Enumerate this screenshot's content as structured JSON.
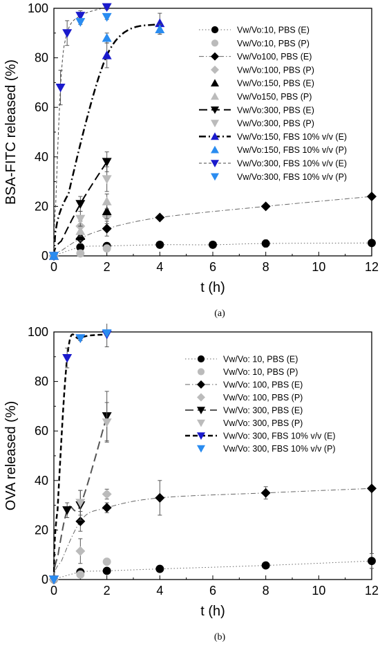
{
  "chart_data": [
    {
      "type": "scatter",
      "id": "a",
      "caption": "(a)",
      "xlabel": "t (h)",
      "ylabel": "BSA-FITC released (%)",
      "xlim": [
        0,
        12
      ],
      "ylim": [
        0,
        100
      ],
      "xticks": [
        0,
        2,
        4,
        6,
        8,
        10,
        12
      ],
      "yticks": [
        0,
        20,
        40,
        60,
        80,
        100
      ],
      "grid": false,
      "legend_position": "top-right",
      "series": [
        {
          "name": "Vw/Vo:10, PBS (E)",
          "marker": "circle",
          "color": "#000000",
          "line": "dot",
          "lineColor": "#666666",
          "x": [
            0,
            1,
            2,
            4,
            6,
            8,
            12
          ],
          "y": [
            0,
            3.5,
            4,
            4.5,
            4.5,
            5,
            5.2
          ],
          "err": [
            0,
            1,
            1,
            0.5,
            0.5,
            1.5,
            1
          ],
          "fit": true
        },
        {
          "name": "Vw/Vo:10, PBS (P)",
          "marker": "circle",
          "color": "#bbbbbb",
          "line": "none",
          "x": [
            0,
            1,
            2
          ],
          "y": [
            0,
            1,
            3
          ],
          "err": [
            0,
            0.5,
            0.8
          ]
        },
        {
          "name": "Vw/Vo100, PBS (E)",
          "marker": "diamond",
          "color": "#000000",
          "line": "dashdot",
          "lineColor": "#666666",
          "x": [
            0,
            1,
            2,
            4,
            8,
            12
          ],
          "y": [
            0,
            7,
            11,
            15.5,
            20,
            24
          ],
          "err": [
            0,
            2,
            3,
            1,
            1,
            1
          ],
          "fit": true
        },
        {
          "name": "Vw/Vo:100, PBS (P)",
          "marker": "diamond",
          "color": "#bbbbbb",
          "line": "none",
          "x": [
            0,
            1,
            2
          ],
          "y": [
            0,
            12,
            16
          ],
          "err": [
            0,
            2,
            3
          ]
        },
        {
          "name": "Vw/Vo:150, PBS (E)",
          "marker": "triangle-up",
          "color": "#000000",
          "line": "none",
          "x": [
            0,
            1,
            2
          ],
          "y": [
            0,
            8,
            18
          ],
          "err": [
            0,
            2,
            3
          ]
        },
        {
          "name": "Vw/Vo150, PBS (P)",
          "marker": "triangle-up",
          "color": "#bbbbbb",
          "line": "none",
          "x": [
            0,
            1,
            2
          ],
          "y": [
            0,
            10,
            22
          ],
          "err": [
            0,
            2,
            3
          ]
        },
        {
          "name": "Vw/Vo:300, PBS (E)",
          "marker": "triangle-down",
          "color": "#000000",
          "line": "longdash",
          "lineColor": "#000000",
          "x": [
            0,
            1,
            2
          ],
          "y": [
            0,
            21,
            38
          ],
          "err": [
            0,
            3,
            4
          ],
          "fit": true
        },
        {
          "name": "Vw/Vo:300, PBS (P)",
          "marker": "triangle-down",
          "color": "#bbbbbb",
          "line": "none",
          "x": [
            0,
            1,
            2
          ],
          "y": [
            0,
            15,
            31
          ],
          "err": [
            0,
            3,
            5
          ]
        },
        {
          "name": "Vw/Vo:150, FBS 10% v/v (E)",
          "marker": "triangle-up",
          "color": "#1a1acc",
          "line": "dashdotbold",
          "lineColor": "#000000",
          "x": [
            0,
            2,
            4
          ],
          "y": [
            0,
            81,
            94
          ],
          "err": [
            0,
            5,
            4
          ],
          "fit": true
        },
        {
          "name": "Vw/Vo:150, FBS 10% v/v (P)",
          "marker": "triangle-up",
          "color": "#2a8cf0",
          "line": "none",
          "x": [
            0,
            2,
            4
          ],
          "y": [
            0,
            88,
            91.5
          ],
          "err": [
            0,
            2,
            2
          ]
        },
        {
          "name": "Vw/Vo:300, FBS 10% v/v (E)",
          "marker": "triangle-down",
          "color": "#1a1acc",
          "line": "shortdash",
          "lineColor": "#444444",
          "x": [
            0,
            0.25,
            0.5,
            1,
            2
          ],
          "y": [
            0,
            68,
            90,
            97,
            100.5
          ],
          "err": [
            0,
            7,
            5,
            2,
            1
          ],
          "fit": true
        },
        {
          "name": "Vw/Vo:300, FBS 10% v/v (P)",
          "marker": "triangle-down",
          "color": "#2a8cf0",
          "line": "none",
          "x": [
            0,
            1,
            2
          ],
          "y": [
            0,
            94.5,
            96.5
          ],
          "err": [
            0,
            1,
            1
          ]
        }
      ]
    },
    {
      "type": "scatter",
      "id": "b",
      "caption": "(b)",
      "xlabel": "t (h)",
      "ylabel": "OVA released (%)",
      "xlim": [
        0,
        12
      ],
      "ylim": [
        0,
        100
      ],
      "xticks": [
        0,
        2,
        4,
        6,
        8,
        10,
        12
      ],
      "yticks": [
        0,
        20,
        40,
        60,
        80,
        100
      ],
      "grid": false,
      "legend_position": "top-right",
      "series": [
        {
          "name": "Vw/Vo: 10, PBS (E)",
          "marker": "circle",
          "color": "#000000",
          "line": "dot",
          "lineColor": "#666666",
          "x": [
            0,
            1,
            2,
            4,
            8,
            12
          ],
          "y": [
            0,
            3,
            3.5,
            4.3,
            5.7,
            7.5
          ],
          "err": [
            0,
            0.8,
            1,
            0.5,
            1,
            3
          ],
          "fit": true
        },
        {
          "name": "Vw/Vo: 10, PBS (P)",
          "marker": "circle",
          "color": "#bbbbbb",
          "line": "none",
          "x": [
            0,
            1,
            2
          ],
          "y": [
            0,
            2,
            7.2
          ],
          "err": [
            0,
            0.8,
            1
          ]
        },
        {
          "name": "Vw/Vo: 100, PBS (E)",
          "marker": "diamond",
          "color": "#000000",
          "line": "dashdot",
          "lineColor": "#666666",
          "x": [
            0,
            1,
            2,
            4,
            8,
            12
          ],
          "y": [
            0,
            23.5,
            29,
            33,
            35,
            36.8
          ],
          "err": [
            0,
            4,
            2,
            7,
            2.5,
            1
          ],
          "fit": true
        },
        {
          "name": "Vw/Vo: 100, PBS (P)",
          "marker": "diamond",
          "color": "#bbbbbb",
          "line": "none",
          "x": [
            0,
            1,
            2
          ],
          "y": [
            0,
            11.5,
            34.5
          ],
          "err": [
            0,
            5,
            2
          ]
        },
        {
          "name": "Vw/Vo: 300, PBS (E)",
          "marker": "triangle-down",
          "color": "#000000",
          "line": "longdash",
          "lineColor": "#555555",
          "x": [
            0,
            0.5,
            1,
            2
          ],
          "y": [
            0,
            28,
            30,
            66
          ],
          "err": [
            0,
            3,
            6,
            10
          ],
          "fit": true
        },
        {
          "name": "Vw/Vo: 300, PBS (P)",
          "marker": "triangle-down",
          "color": "#bbbbbb",
          "line": "none",
          "x": [
            0,
            1,
            2
          ],
          "y": [
            0,
            31,
            63.5
          ],
          "err": [
            0,
            5,
            8
          ]
        },
        {
          "name": "Vw/Vo: 300, FBS 10% v/v (E)",
          "marker": "triangle-down",
          "color": "#1a1acc",
          "line": "boldshortdash",
          "lineColor": "#000000",
          "x": [
            0,
            0.5,
            1,
            2
          ],
          "y": [
            0,
            89.5,
            97.5,
            99
          ],
          "err": [
            0,
            4,
            1,
            5
          ],
          "fit": true
        },
        {
          "name": "Vw/Vo: 300, FBS 10% v/v (P)",
          "marker": "triangle-down",
          "color": "#2a8cf0",
          "line": "none",
          "x": [
            0,
            1,
            2
          ],
          "y": [
            0,
            97.5,
            99.5
          ],
          "err": [
            0,
            1,
            1
          ]
        }
      ]
    }
  ]
}
